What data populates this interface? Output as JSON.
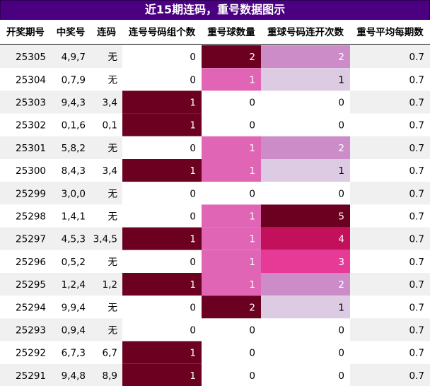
{
  "title": "近15期连码，重号数据图示",
  "colors": {
    "title_bg": "#4b0082",
    "title_text": "#ffffff",
    "level_0": "#ffffff",
    "level_1_light": "#dccbe3",
    "level_2_mid": "#cc8cc7",
    "level_dark": "#6b0020",
    "level_pink": "#e065b5",
    "level_3": "#e63a96",
    "level_4": "#c2105a",
    "level_5": "#6b0020",
    "stripe": "#f0f0f0"
  },
  "chart_data": {
    "type": "table",
    "title": "近15期连码，重号数据图示",
    "columns": [
      "开奖期号",
      "中奖号",
      "连码",
      "连号号码组个数",
      "重号球数量",
      "重球号码连开次数",
      "重号平均每期数"
    ],
    "rows": [
      {
        "period": "25305",
        "numbers": "4,9,7",
        "consecutive": "无",
        "consec_groups": 0,
        "repeat_count": 2,
        "repeat_streak": 2,
        "repeat_avg": 0.7
      },
      {
        "period": "25304",
        "numbers": "0,7,9",
        "consecutive": "无",
        "consec_groups": 0,
        "repeat_count": 1,
        "repeat_streak": 1,
        "repeat_avg": 0.7
      },
      {
        "period": "25303",
        "numbers": "9,4,3",
        "consecutive": "3,4",
        "consec_groups": 1,
        "repeat_count": 0,
        "repeat_streak": 0,
        "repeat_avg": 0.7
      },
      {
        "period": "25302",
        "numbers": "0,1,6",
        "consecutive": "0,1",
        "consec_groups": 1,
        "repeat_count": 0,
        "repeat_streak": 0,
        "repeat_avg": 0.7
      },
      {
        "period": "25301",
        "numbers": "5,8,2",
        "consecutive": "无",
        "consec_groups": 0,
        "repeat_count": 1,
        "repeat_streak": 2,
        "repeat_avg": 0.7
      },
      {
        "period": "25300",
        "numbers": "8,4,3",
        "consecutive": "3,4",
        "consec_groups": 1,
        "repeat_count": 1,
        "repeat_streak": 1,
        "repeat_avg": 0.7
      },
      {
        "period": "25299",
        "numbers": "3,0,0",
        "consecutive": "无",
        "consec_groups": 0,
        "repeat_count": 0,
        "repeat_streak": 0,
        "repeat_avg": 0.7
      },
      {
        "period": "25298",
        "numbers": "1,4,1",
        "consecutive": "无",
        "consec_groups": 0,
        "repeat_count": 1,
        "repeat_streak": 5,
        "repeat_avg": 0.7
      },
      {
        "period": "25297",
        "numbers": "4,5,3",
        "consecutive": "3,4,5",
        "consec_groups": 1,
        "repeat_count": 1,
        "repeat_streak": 4,
        "repeat_avg": 0.7
      },
      {
        "period": "25296",
        "numbers": "0,5,2",
        "consecutive": "无",
        "consec_groups": 0,
        "repeat_count": 1,
        "repeat_streak": 3,
        "repeat_avg": 0.7
      },
      {
        "period": "25295",
        "numbers": "1,2,4",
        "consecutive": "1,2",
        "consec_groups": 1,
        "repeat_count": 1,
        "repeat_streak": 2,
        "repeat_avg": 0.7
      },
      {
        "period": "25294",
        "numbers": "9,9,4",
        "consecutive": "无",
        "consec_groups": 0,
        "repeat_count": 2,
        "repeat_streak": 1,
        "repeat_avg": 0.7
      },
      {
        "period": "25293",
        "numbers": "0,9,4",
        "consecutive": "无",
        "consec_groups": 0,
        "repeat_count": 0,
        "repeat_streak": 0,
        "repeat_avg": 0.7
      },
      {
        "period": "25292",
        "numbers": "6,7,3",
        "consecutive": "6,7",
        "consec_groups": 1,
        "repeat_count": 0,
        "repeat_streak": 0,
        "repeat_avg": 0.7
      },
      {
        "period": "25291",
        "numbers": "9,4,8",
        "consecutive": "8,9",
        "consec_groups": 1,
        "repeat_count": 0,
        "repeat_streak": 0,
        "repeat_avg": 0.7
      }
    ]
  }
}
